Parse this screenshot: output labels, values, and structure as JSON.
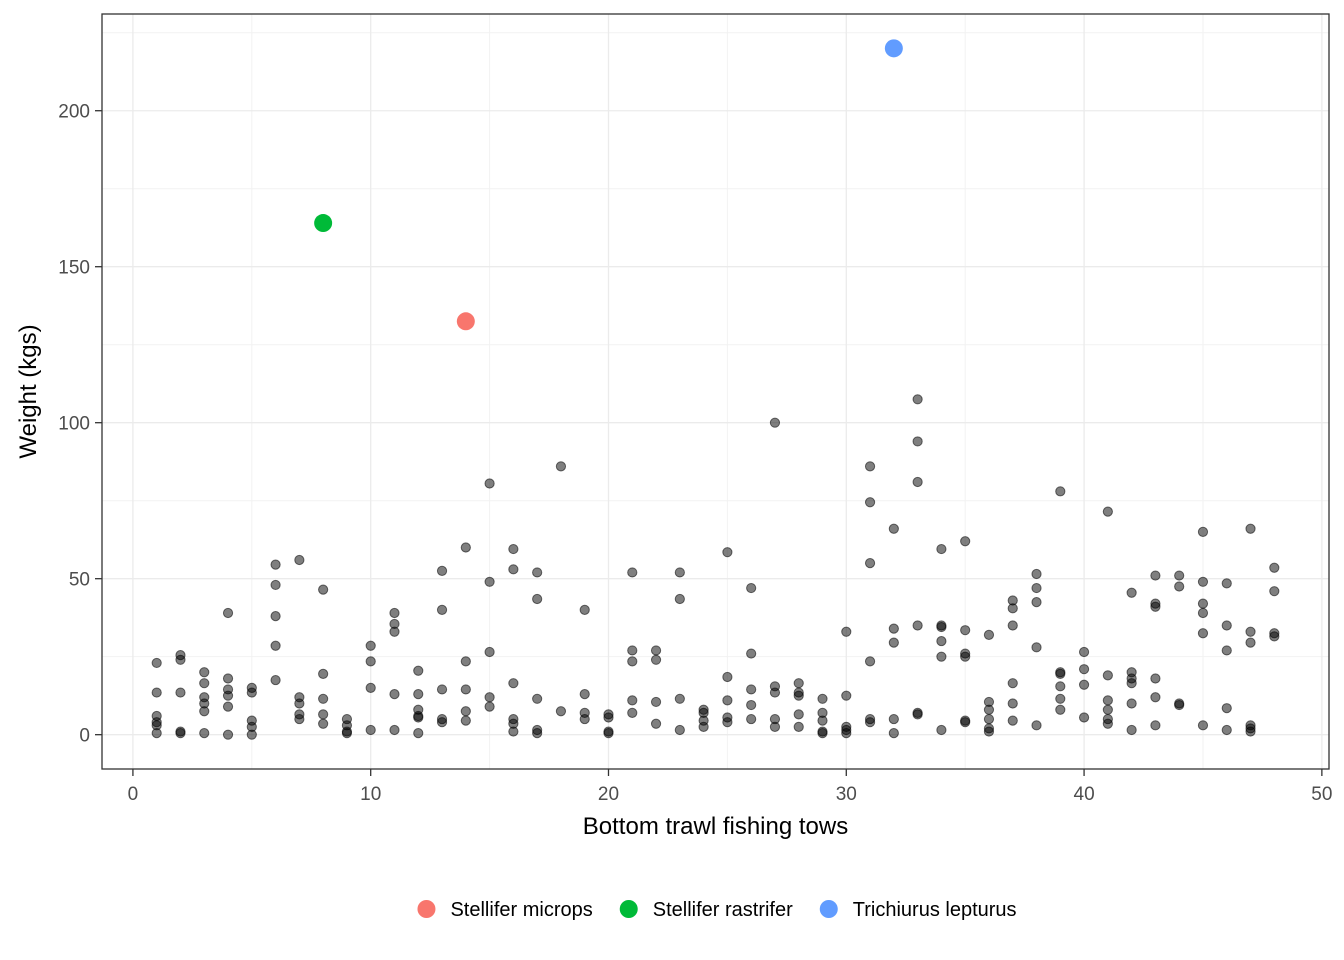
{
  "chart_data": {
    "type": "scatter",
    "title": "",
    "xlabel": "Bottom trawl fishing tows",
    "ylabel": "Weight (kgs)",
    "xlim": [
      -1.3,
      50.3
    ],
    "ylim": [
      -11,
      231
    ],
    "x_ticks": [
      0,
      10,
      20,
      30,
      40,
      50
    ],
    "y_ticks": [
      0,
      50,
      100,
      150,
      200
    ],
    "grid": true,
    "legend_position": "bottom",
    "colors": {
      "background_points": "#000000",
      "Stellifer microps": "#F8766D",
      "Stellifer rastrifer": "#00BA38",
      "Trichiurus lepturus": "#619CFF"
    },
    "series": [
      {
        "name": "Stellifer microps",
        "color": "#F8766D",
        "points": [
          [
            14,
            132.5
          ]
        ]
      },
      {
        "name": "Stellifer rastrifer",
        "color": "#00BA38",
        "points": [
          [
            8,
            164
          ]
        ]
      },
      {
        "name": "Trichiurus lepturus",
        "color": "#619CFF",
        "points": [
          [
            32,
            220
          ]
        ]
      },
      {
        "name": "",
        "color": "#000000",
        "points": [
          [
            1,
            23
          ],
          [
            1,
            13.5
          ],
          [
            1,
            6
          ],
          [
            1,
            4
          ],
          [
            1,
            3
          ],
          [
            1,
            0.5
          ],
          [
            2,
            25.5
          ],
          [
            2,
            24
          ],
          [
            2,
            13.5
          ],
          [
            2,
            1
          ],
          [
            2,
            0.5
          ],
          [
            3,
            20
          ],
          [
            3,
            16.5
          ],
          [
            3,
            12
          ],
          [
            3,
            10
          ],
          [
            3,
            7.5
          ],
          [
            3,
            0.5
          ],
          [
            4,
            39
          ],
          [
            4,
            18
          ],
          [
            4,
            14.5
          ],
          [
            4,
            12.5
          ],
          [
            4,
            9
          ],
          [
            4,
            0
          ],
          [
            5,
            15
          ],
          [
            5,
            13.5
          ],
          [
            5,
            4.5
          ],
          [
            5,
            2.5
          ],
          [
            5,
            0
          ],
          [
            6,
            54.5
          ],
          [
            6,
            48
          ],
          [
            6,
            38
          ],
          [
            6,
            28.5
          ],
          [
            6,
            17.5
          ],
          [
            7,
            56
          ],
          [
            7,
            12
          ],
          [
            7,
            10
          ],
          [
            7,
            6.5
          ],
          [
            7,
            5
          ],
          [
            8,
            46.5
          ],
          [
            8,
            19.5
          ],
          [
            8,
            11.5
          ],
          [
            8,
            6.5
          ],
          [
            8,
            3.5
          ],
          [
            9,
            5
          ],
          [
            9,
            3
          ],
          [
            9,
            1
          ],
          [
            9,
            0.5
          ],
          [
            10,
            28.5
          ],
          [
            10,
            23.5
          ],
          [
            10,
            15
          ],
          [
            10,
            1.5
          ],
          [
            11,
            39
          ],
          [
            11,
            35.5
          ],
          [
            11,
            33
          ],
          [
            11,
            13
          ],
          [
            11,
            1.5
          ],
          [
            12,
            20.5
          ],
          [
            12,
            13
          ],
          [
            12,
            8
          ],
          [
            12,
            6
          ],
          [
            12,
            5.5
          ],
          [
            12,
            0.5
          ],
          [
            13,
            52.5
          ],
          [
            13,
            40
          ],
          [
            13,
            14.5
          ],
          [
            13,
            5
          ],
          [
            13,
            4
          ],
          [
            14,
            60
          ],
          [
            14,
            23.5
          ],
          [
            14,
            14.5
          ],
          [
            14,
            7.5
          ],
          [
            14,
            4.5
          ],
          [
            15,
            80.5
          ],
          [
            15,
            49
          ],
          [
            15,
            26.5
          ],
          [
            15,
            12
          ],
          [
            15,
            9
          ],
          [
            16,
            59.5
          ],
          [
            16,
            53
          ],
          [
            16,
            16.5
          ],
          [
            16,
            5
          ],
          [
            16,
            3.5
          ],
          [
            16,
            1
          ],
          [
            17,
            52
          ],
          [
            17,
            43.5
          ],
          [
            17,
            11.5
          ],
          [
            17,
            1.5
          ],
          [
            17,
            0.5
          ],
          [
            18,
            86
          ],
          [
            18,
            7.5
          ],
          [
            19,
            40
          ],
          [
            19,
            13
          ],
          [
            19,
            7
          ],
          [
            19,
            5
          ],
          [
            20,
            6.5
          ],
          [
            20,
            5.5
          ],
          [
            20,
            1
          ],
          [
            20,
            0.5
          ],
          [
            21,
            52
          ],
          [
            21,
            27
          ],
          [
            21,
            23.5
          ],
          [
            21,
            11
          ],
          [
            21,
            7
          ],
          [
            22,
            27
          ],
          [
            22,
            24
          ],
          [
            22,
            10.5
          ],
          [
            22,
            3.5
          ],
          [
            23,
            52
          ],
          [
            23,
            43.5
          ],
          [
            23,
            11.5
          ],
          [
            23,
            1.5
          ],
          [
            24,
            8
          ],
          [
            24,
            7
          ],
          [
            24,
            4.5
          ],
          [
            24,
            2.5
          ],
          [
            25,
            58.5
          ],
          [
            25,
            18.5
          ],
          [
            25,
            11
          ],
          [
            25,
            5.5
          ],
          [
            25,
            4
          ],
          [
            26,
            47
          ],
          [
            26,
            26
          ],
          [
            26,
            14.5
          ],
          [
            26,
            9.5
          ],
          [
            26,
            5
          ],
          [
            27,
            100
          ],
          [
            27,
            15.5
          ],
          [
            27,
            13.5
          ],
          [
            27,
            5
          ],
          [
            27,
            2.5
          ],
          [
            28,
            16.5
          ],
          [
            28,
            13.5
          ],
          [
            28,
            12.5
          ],
          [
            28,
            6.5
          ],
          [
            28,
            2.5
          ],
          [
            29,
            11.5
          ],
          [
            29,
            7
          ],
          [
            29,
            4.5
          ],
          [
            29,
            1
          ],
          [
            29,
            0.5
          ],
          [
            30,
            33
          ],
          [
            30,
            12.5
          ],
          [
            30,
            2.5
          ],
          [
            30,
            1.5
          ],
          [
            30,
            0.5
          ],
          [
            31,
            86
          ],
          [
            31,
            74.5
          ],
          [
            31,
            55
          ],
          [
            31,
            23.5
          ],
          [
            31,
            5
          ],
          [
            31,
            4
          ],
          [
            32,
            66
          ],
          [
            32,
            34
          ],
          [
            32,
            29.5
          ],
          [
            32,
            5
          ],
          [
            32,
            0.5
          ],
          [
            33,
            107.5
          ],
          [
            33,
            94
          ],
          [
            33,
            81
          ],
          [
            33,
            35
          ],
          [
            33,
            7
          ],
          [
            33,
            6.5
          ],
          [
            34,
            59.5
          ],
          [
            34,
            35
          ],
          [
            34,
            34.5
          ],
          [
            34,
            30
          ],
          [
            34,
            25
          ],
          [
            34,
            1.5
          ],
          [
            35,
            62
          ],
          [
            35,
            33.5
          ],
          [
            35,
            26
          ],
          [
            35,
            25
          ],
          [
            35,
            4.5
          ],
          [
            35,
            4
          ],
          [
            36,
            32
          ],
          [
            36,
            10.5
          ],
          [
            36,
            8
          ],
          [
            36,
            5
          ],
          [
            36,
            2
          ],
          [
            36,
            1
          ],
          [
            37,
            43
          ],
          [
            37,
            40.5
          ],
          [
            37,
            35
          ],
          [
            37,
            16.5
          ],
          [
            37,
            10
          ],
          [
            37,
            4.5
          ],
          [
            38,
            51.5
          ],
          [
            38,
            47
          ],
          [
            38,
            42.5
          ],
          [
            38,
            28
          ],
          [
            38,
            3
          ],
          [
            39,
            78
          ],
          [
            39,
            20
          ],
          [
            39,
            19.5
          ],
          [
            39,
            15.5
          ],
          [
            39,
            11.5
          ],
          [
            39,
            8
          ],
          [
            40,
            26.5
          ],
          [
            40,
            21
          ],
          [
            40,
            16
          ],
          [
            40,
            5.5
          ],
          [
            41,
            71.5
          ],
          [
            41,
            19
          ],
          [
            41,
            11
          ],
          [
            41,
            8
          ],
          [
            41,
            5
          ],
          [
            41,
            3.5
          ],
          [
            42,
            45.5
          ],
          [
            42,
            20
          ],
          [
            42,
            18
          ],
          [
            42,
            16.5
          ],
          [
            42,
            10
          ],
          [
            42,
            1.5
          ],
          [
            43,
            51
          ],
          [
            43,
            42
          ],
          [
            43,
            41
          ],
          [
            43,
            18
          ],
          [
            43,
            12
          ],
          [
            43,
            3
          ],
          [
            44,
            51
          ],
          [
            44,
            47.5
          ],
          [
            44,
            10
          ],
          [
            44,
            9.5
          ],
          [
            45,
            65
          ],
          [
            45,
            49
          ],
          [
            45,
            42
          ],
          [
            45,
            39
          ],
          [
            45,
            32.5
          ],
          [
            45,
            3
          ],
          [
            46,
            48.5
          ],
          [
            46,
            35
          ],
          [
            46,
            27
          ],
          [
            46,
            8.5
          ],
          [
            46,
            1.5
          ],
          [
            47,
            66
          ],
          [
            47,
            33
          ],
          [
            47,
            29.5
          ],
          [
            47,
            3
          ],
          [
            47,
            2
          ],
          [
            47,
            1
          ],
          [
            48,
            53.5
          ],
          [
            48,
            46
          ],
          [
            48,
            32.5
          ],
          [
            48,
            31.5
          ]
        ]
      }
    ]
  }
}
